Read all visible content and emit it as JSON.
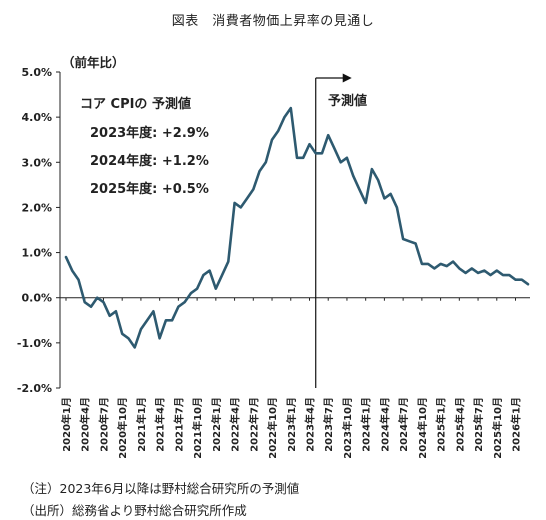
{
  "title": "図表　消費者物価上昇率の見通し",
  "unit_label": "（前年比）",
  "forecast_box": {
    "heading": "コア CPIの 予測値",
    "lines": [
      "2023年度: +2.9%",
      "2024年度: +1.2%",
      "2025年度: +0.5%"
    ]
  },
  "forecast_marker_label": "予測値",
  "notes": [
    "（注）2023年6月以降は野村総合研究所の予測値",
    "（出所）総務省より野村総合研究所作成"
  ],
  "colors": {
    "line": "#2e5a70",
    "axis": "#222222"
  },
  "chart_data": {
    "type": "line",
    "title": "図表　消費者物価上昇率の見通し",
    "ylabel": "（前年比）",
    "ylim": [
      -2.0,
      5.0
    ],
    "yticks": [
      5.0,
      4.0,
      3.0,
      2.0,
      1.0,
      0.0,
      -1.0,
      -2.0
    ],
    "ytick_labels": [
      "5.0%",
      "4.0%",
      "3.0%",
      "2.0%",
      "1.0%",
      "0.0%",
      "-1.0%",
      "-2.0%"
    ],
    "xtick_labels": [
      "2020年1月",
      "2020年4月",
      "2020年7月",
      "2020年10月",
      "2021年1月",
      "2021年4月",
      "2021年7月",
      "2021年10月",
      "2022年1月",
      "2022年4月",
      "2022年7月",
      "2022年10月",
      "2023年1月",
      "2023年4月",
      "2023年7月",
      "2023年10月",
      "2024年1月",
      "2024年4月",
      "2024年7月",
      "2024年10月",
      "2025年1月",
      "2025年4月",
      "2025年7月",
      "2025年10月",
      "2026年1月"
    ],
    "forecast_start": "2023年6月",
    "series": [
      {
        "x_start": "2020年1月",
        "frequency": "monthly",
        "values": [
          0.9,
          0.6,
          0.4,
          -0.1,
          -0.2,
          0.0,
          -0.1,
          -0.4,
          -0.3,
          -0.8,
          -0.9,
          -1.1,
          -0.7,
          -0.5,
          -0.3,
          -0.9,
          -0.5,
          -0.5,
          -0.2,
          -0.1,
          0.1,
          0.2,
          0.5,
          0.6,
          0.2,
          0.5,
          0.8,
          2.1,
          2.0,
          2.2,
          2.4,
          2.8,
          3.0,
          3.5,
          3.7,
          4.0,
          4.2,
          3.1,
          3.1,
          3.4,
          3.2,
          3.2,
          3.6,
          3.3,
          3.0,
          3.1,
          2.7,
          2.4,
          2.1,
          2.85,
          2.6,
          2.2,
          2.3,
          2.0,
          1.3,
          1.25,
          1.2,
          0.75,
          0.75,
          0.65,
          0.75,
          0.7,
          0.8,
          0.65,
          0.55,
          0.65,
          0.55,
          0.6,
          0.5,
          0.6,
          0.5,
          0.5,
          0.4,
          0.4,
          0.3
        ]
      }
    ],
    "grid": false
  }
}
